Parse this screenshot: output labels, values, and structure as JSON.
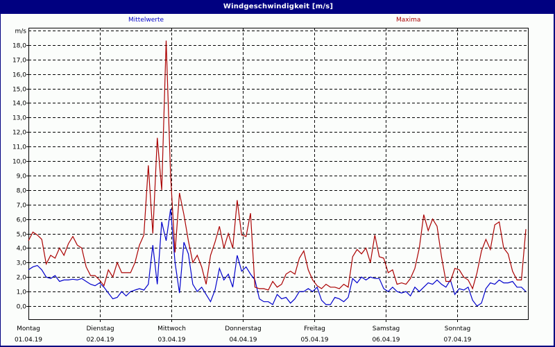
{
  "window": {
    "title": "Windgeschwindigkeit [m/s]"
  },
  "legend": {
    "mittelwerte": {
      "label": "Mittelwerte",
      "color": "#0000cc"
    },
    "maxima": {
      "label": "Maxima",
      "color": "#aa0000"
    }
  },
  "chart_data": {
    "type": "line",
    "title": "Windgeschwindigkeit [m/s]",
    "xlabel": "",
    "ylabel": "m/s",
    "ylim": [
      -0.9,
      19.0
    ],
    "grid": true,
    "legend_position": "top",
    "y_ticks": [
      "0,0",
      "1,0",
      "2,0",
      "3,0",
      "4,0",
      "5,0",
      "6,0",
      "7,0",
      "8,0",
      "9,0",
      "10,0",
      "11,0",
      "12,0",
      "13,0",
      "14,0",
      "15,0",
      "16,0",
      "17,0",
      "18,0"
    ],
    "y_unit_label": "m/s",
    "x_ticks": [
      {
        "day": "Montag",
        "date": "01.04.19"
      },
      {
        "day": "Dienstag",
        "date": "02.04.19"
      },
      {
        "day": "Mittwoch",
        "date": "03.04.19"
      },
      {
        "day": "Donnerstag",
        "date": "04.04.19"
      },
      {
        "day": "Freitag",
        "date": "05.04.19"
      },
      {
        "day": "Samstag",
        "date": "06.04.19"
      },
      {
        "day": "Sonntag",
        "date": "07.04.19"
      }
    ],
    "x_interval_hours": 2,
    "series": [
      {
        "name": "Mittelwerte",
        "color": "#0000cc",
        "values": [
          2.5,
          2.7,
          2.8,
          2.5,
          2.0,
          1.9,
          2.1,
          1.7,
          1.8,
          1.8,
          1.85,
          1.8,
          1.9,
          1.7,
          1.5,
          1.4,
          1.6,
          1.3,
          0.9,
          0.5,
          0.6,
          1.0,
          0.7,
          1.0,
          1.1,
          1.2,
          1.1,
          1.5,
          4.2,
          1.5,
          5.8,
          4.5,
          6.7,
          3.0,
          0.9,
          4.4,
          3.6,
          1.5,
          1.0,
          1.3,
          0.8,
          0.3,
          1.1,
          2.6,
          1.8,
          2.2,
          1.3,
          3.5,
          2.4,
          2.7,
          2.2,
          1.8,
          0.5,
          0.3,
          0.3,
          0.1,
          0.8,
          0.5,
          0.6,
          0.2,
          0.5,
          1.0,
          1.0,
          1.2,
          1.0,
          1.3,
          0.4,
          0.1,
          0.1,
          0.6,
          0.5,
          0.3,
          0.6,
          1.9,
          1.6,
          2.0,
          1.8,
          2.0,
          1.9,
          1.9,
          1.2,
          1.0,
          1.3,
          1.0
        ],
        "values_tail": [
          0.9,
          1.0,
          0.7,
          1.3,
          1.0,
          1.3,
          1.6,
          1.5,
          1.8,
          1.5,
          1.3,
          1.8,
          0.8,
          1.2,
          1.1,
          1.3,
          0.4,
          0.0,
          0.2,
          1.2,
          1.6,
          1.5,
          1.8,
          1.6,
          1.6,
          1.7,
          1.3,
          1.3,
          1.0
        ]
      },
      {
        "name": "Maxima",
        "color": "#aa0000",
        "values": [
          4.5,
          5.1,
          4.9,
          4.6,
          2.9,
          3.5,
          3.3,
          4.0,
          3.5,
          4.3,
          4.8,
          4.2,
          4.0,
          2.7,
          2.1,
          2.1,
          1.8,
          1.4,
          2.5,
          2.0,
          3.0,
          2.3,
          2.3,
          2.3,
          3.0,
          4.2,
          4.9,
          9.7,
          5.0,
          11.6,
          8.0,
          18.3,
          9.0,
          3.7,
          7.8,
          6.3,
          4.5,
          3.0,
          3.5,
          2.7,
          1.5,
          3.5,
          4.4,
          5.5,
          4.0,
          5.0,
          4.0,
          7.3,
          4.9,
          4.8,
          6.4,
          1.3,
          1.2,
          1.2,
          1.1,
          1.7,
          1.3,
          1.5,
          2.2,
          2.4,
          2.2,
          3.3,
          3.8,
          2.5,
          1.8,
          1.4,
          1.2,
          1.5,
          1.3,
          1.3,
          1.2,
          1.5,
          1.3,
          3.4,
          3.9,
          3.6,
          4.0,
          3.0,
          4.9,
          3.4,
          3.3,
          2.3,
          2.5,
          1.5
        ],
        "values_tail": [
          1.6,
          1.5,
          1.9,
          2.6,
          4.0,
          6.3,
          5.2,
          6.0,
          5.5,
          3.4,
          1.7,
          1.7,
          2.6,
          2.5,
          2.0,
          1.8,
          1.2,
          2.3,
          3.8,
          4.6,
          3.9,
          5.6,
          5.8,
          4.0,
          3.6,
          2.4,
          1.8,
          1.8,
          5.3
        ]
      }
    ]
  }
}
